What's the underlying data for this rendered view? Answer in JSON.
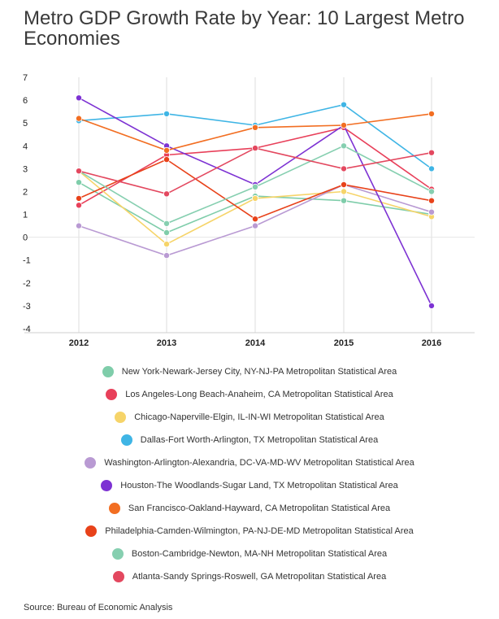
{
  "chart_data": {
    "type": "line",
    "title": "Metro GDP Growth Rate by Year: 10 Largest Metro Economies",
    "xlabel": "",
    "ylabel": "",
    "x": [
      "2012",
      "2013",
      "2014",
      "2015",
      "2016"
    ],
    "yticks": [
      "7",
      "6",
      "5",
      "4",
      "3",
      "2",
      "1",
      "0",
      "-1",
      "-2",
      "-3",
      "-4"
    ],
    "ylim": [
      -4,
      7
    ],
    "grid": "vertical",
    "legend_position": "bottom",
    "series": [
      {
        "name": "New York-Newark-Jersey City, NY-NJ-PA Metropolitan Statistical Area",
        "color": "#7fcdaa",
        "values": [
          2.4,
          0.2,
          1.8,
          1.6,
          1.0
        ]
      },
      {
        "name": "Los Angeles-Long Beach-Anaheim, CA Metropolitan Statistical Area",
        "color": "#e8405a",
        "values": [
          1.4,
          3.6,
          3.9,
          4.8,
          2.1
        ]
      },
      {
        "name": "Chicago-Naperville-Elgin, IL-IN-WI Metropolitan Statistical Area",
        "color": "#f6d469",
        "values": [
          2.9,
          -0.3,
          1.7,
          2.0,
          0.9
        ]
      },
      {
        "name": "Dallas-Fort Worth-Arlington, TX Metropolitan Statistical Area",
        "color": "#3fb5e5",
        "values": [
          5.1,
          5.4,
          4.9,
          5.8,
          3.0
        ]
      },
      {
        "name": "Washington-Arlington-Alexandria, DC-VA-MD-WV Metropolitan Statistical Area",
        "color": "#b99ad3",
        "values": [
          0.5,
          -0.8,
          0.5,
          2.3,
          1.1
        ]
      },
      {
        "name": "Houston-The Woodlands-Sugar Land, TX Metropolitan Statistical Area",
        "color": "#7d32d3",
        "values": [
          6.1,
          4.0,
          2.3,
          4.9,
          -3.0
        ]
      },
      {
        "name": "San Francisco-Oakland-Hayward, CA Metropolitan Statistical Area",
        "color": "#f26e22",
        "values": [
          5.2,
          3.8,
          4.8,
          4.9,
          5.4
        ]
      },
      {
        "name": "Philadelphia-Camden-Wilmington, PA-NJ-DE-MD Metropolitan Statistical Area",
        "color": "#e8421a",
        "values": [
          1.7,
          3.4,
          0.8,
          2.3,
          1.6
        ]
      },
      {
        "name": "Boston-Cambridge-Newton, MA-NH Metropolitan Statistical Area",
        "color": "#86cfb0",
        "values": [
          2.9,
          0.6,
          2.2,
          4.0,
          2.0
        ]
      },
      {
        "name": "Atlanta-Sandy Springs-Roswell, GA Metropolitan Statistical Area",
        "color": "#e3485f",
        "values": [
          2.9,
          1.9,
          3.9,
          3.0,
          3.7
        ]
      }
    ]
  },
  "source": "Source: Bureau of Economic Analysis"
}
